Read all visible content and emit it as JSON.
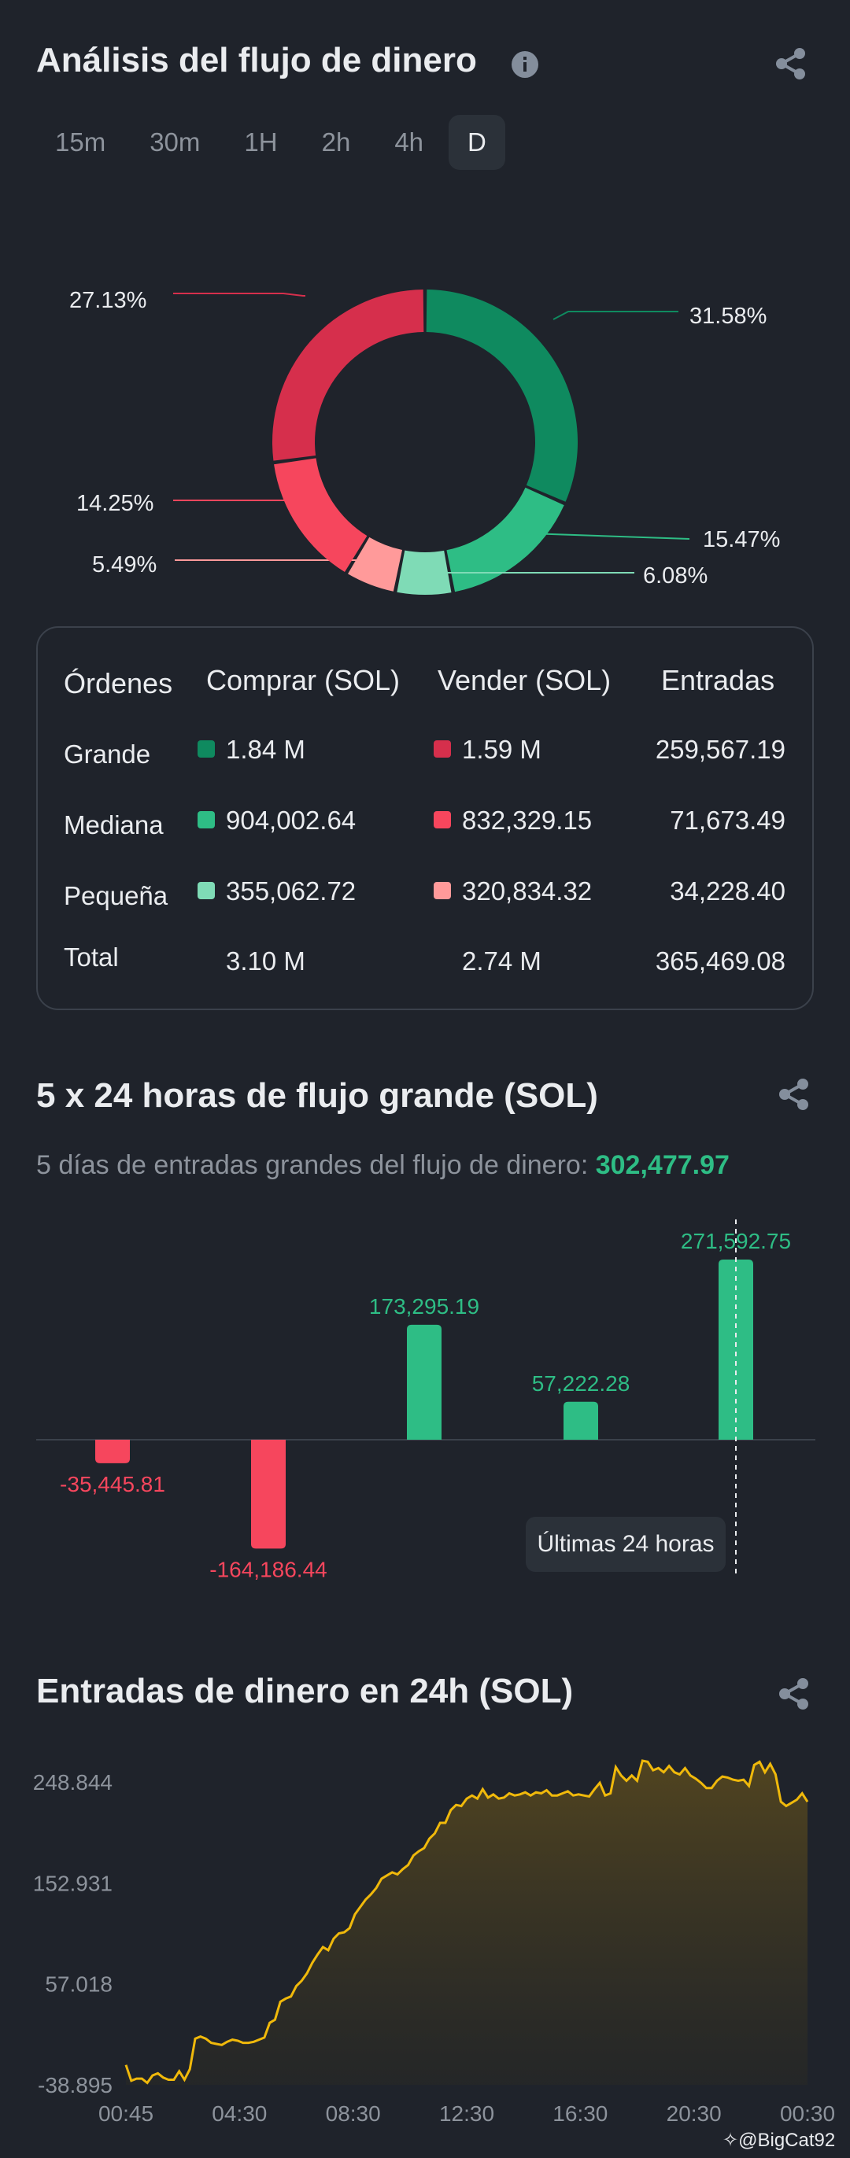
{
  "money_flow": {
    "title": "Análisis del flujo de dinero",
    "tabs": [
      "15m",
      "30m",
      "1H",
      "2h",
      "4h",
      "D"
    ],
    "active_tab": "D",
    "donut": {
      "slices": [
        {
          "label": "31.58%",
          "value": 31.58,
          "color": "#0f8a5f"
        },
        {
          "label": "15.47%",
          "value": 15.47,
          "color": "#2ebd85"
        },
        {
          "label": "6.08%",
          "value": 6.08,
          "color": "#7fdbb6"
        },
        {
          "label": "5.49%",
          "value": 5.49,
          "color": "#ff9a9a"
        },
        {
          "label": "14.25%",
          "value": 14.25,
          "color": "#f6465d"
        },
        {
          "label": "27.13%",
          "value": 27.13,
          "color": "#d62f4c"
        }
      ]
    },
    "table": {
      "headers": [
        "Órdenes",
        "Comprar (SOL)",
        "Vender (SOL)",
        "Entradas"
      ],
      "rows": [
        {
          "label": "Grande",
          "buy": "1.84 M",
          "sell": "1.59 M",
          "inflow": "259,567.19",
          "buy_color": "#0f8a5f",
          "sell_color": "#d62f4c"
        },
        {
          "label": "Mediana",
          "buy": "904,002.64",
          "sell": "832,329.15",
          "inflow": "71,673.49",
          "buy_color": "#2ebd85",
          "sell_color": "#f6465d"
        },
        {
          "label": "Pequeña",
          "buy": "355,062.72",
          "sell": "320,834.32",
          "inflow": "34,228.40",
          "buy_color": "#7fdbb6",
          "sell_color": "#ff9a9a"
        }
      ],
      "total": {
        "label": "Total",
        "buy": "3.10 M",
        "sell": "2.74 M",
        "inflow": "365,469.08"
      }
    }
  },
  "large_flow": {
    "title": "5 x 24 horas de flujo grande (SOL)",
    "subtitle_prefix": "5 días de entradas grandes del flujo de dinero:",
    "subtitle_value": "302,477.97",
    "tooltip": "Últimas 24 horas"
  },
  "inflow_24h": {
    "title": "Entradas de dinero en 24h (SOL)"
  },
  "watermark": "@BigCat92",
  "colors": {
    "up": "#2ebd85",
    "down": "#f6465d",
    "line": "#f0b90b"
  },
  "chart_data": [
    {
      "type": "pie",
      "categories": [
        "31.58%",
        "15.47%",
        "6.08%",
        "5.49%",
        "14.25%",
        "27.13%"
      ],
      "values": [
        31.58,
        15.47,
        6.08,
        5.49,
        14.25,
        27.13
      ]
    },
    {
      "type": "bar",
      "categories": [
        "",
        "",
        "",
        "",
        ""
      ],
      "values": [
        -35445.81,
        -164186.44,
        173295.19,
        57222.28,
        271592.75
      ],
      "value_labels": [
        "-35,445.81",
        "-164,186.44",
        "173,295.19",
        "57,222.28",
        "271,592.75"
      ]
    },
    {
      "type": "area",
      "x_ticks": [
        "00:45",
        "04:30",
        "08:30",
        "12:30",
        "16:30",
        "20:30",
        "00:30"
      ],
      "y_ticks": [
        "248.844",
        "152.931",
        "57.018",
        "-38.895"
      ],
      "ylim": [
        -38.895,
        248.844
      ],
      "values": [
        -20,
        -35,
        -33,
        -33,
        -37,
        -30,
        -28,
        -32,
        -34,
        -34,
        -26,
        -34,
        -24,
        5,
        7,
        5,
        1,
        0,
        -1,
        2,
        4,
        3,
        1,
        1,
        2,
        4,
        6,
        20,
        23,
        40,
        43,
        45,
        55,
        60,
        67,
        77,
        85,
        92,
        89,
        100,
        105,
        106,
        110,
        123,
        130,
        137,
        142,
        148,
        157,
        160,
        163,
        161,
        166,
        170,
        179,
        183,
        186,
        195,
        200,
        210,
        210,
        222,
        227,
        226,
        233,
        236,
        233,
        242,
        234,
        237,
        233,
        234,
        238,
        236,
        237,
        239,
        236,
        239,
        238,
        241,
        236,
        236,
        238,
        240,
        236,
        237,
        236,
        235,
        242,
        248,
        236,
        238,
        263,
        255,
        250,
        255,
        250,
        269,
        268,
        260,
        262,
        258,
        264,
        258,
        256,
        262,
        255,
        252,
        248,
        243,
        243,
        250,
        254,
        253,
        251,
        250,
        251,
        245,
        265,
        268,
        258,
        266,
        256,
        230,
        226,
        229,
        232,
        238,
        230
      ]
    }
  ]
}
